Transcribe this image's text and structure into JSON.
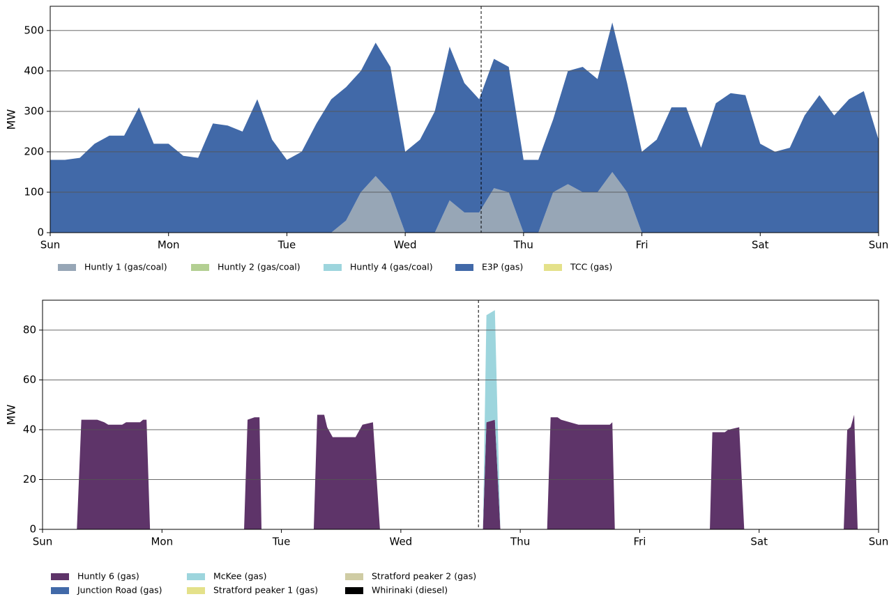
{
  "chart_data": [
    {
      "type": "area",
      "stacked": true,
      "y_label": "MW",
      "grid": true,
      "xlim": [
        0,
        168
      ],
      "ylim": [
        0,
        560
      ],
      "xticks": [
        {
          "value": 0,
          "label": "Sun"
        },
        {
          "value": 24,
          "label": "Mon"
        },
        {
          "value": 48,
          "label": "Tue"
        },
        {
          "value": 72,
          "label": "Wed"
        },
        {
          "value": 96,
          "label": "Thu"
        },
        {
          "value": 120,
          "label": "Fri"
        },
        {
          "value": 144,
          "label": "Sat"
        },
        {
          "value": 168,
          "label": "Sun"
        }
      ],
      "yticks": [
        0,
        100,
        200,
        300,
        400,
        500
      ],
      "marker_x": 87.4,
      "x": [
        0,
        3,
        6,
        9,
        12,
        15,
        18,
        21,
        24,
        27,
        30,
        33,
        36,
        39,
        42,
        45,
        48,
        51,
        54,
        57,
        60,
        63,
        66,
        69,
        72,
        75,
        78,
        81,
        84,
        87,
        90,
        93,
        96,
        99,
        102,
        105,
        108,
        111,
        114,
        117,
        120,
        123,
        126,
        129,
        132,
        135,
        138,
        141,
        144,
        147,
        150,
        153,
        156,
        159,
        162,
        165,
        168
      ],
      "series": [
        {
          "name": "Huntly 1 (gas/coal)",
          "color": "#97a6b6",
          "values": [
            0,
            0,
            0,
            0,
            0,
            0,
            0,
            0,
            0,
            0,
            0,
            0,
            0,
            0,
            0,
            0,
            0,
            0,
            0,
            0,
            30,
            100,
            140,
            100,
            0,
            0,
            0,
            80,
            50,
            50,
            110,
            100,
            0,
            0,
            100,
            120,
            100,
            100,
            150,
            100,
            0,
            0,
            0,
            0,
            0,
            0,
            0,
            0,
            0,
            0,
            0,
            0,
            0,
            0,
            0,
            0,
            0
          ]
        },
        {
          "name": "Huntly 2 (gas/coal)",
          "color": "#b3cf92",
          "values": [
            0,
            0,
            0,
            0,
            0,
            0,
            0,
            0,
            0,
            0,
            0,
            0,
            0,
            0,
            0,
            0,
            0,
            0,
            0,
            0,
            0,
            0,
            0,
            0,
            0,
            0,
            0,
            0,
            0,
            0,
            0,
            0,
            0,
            0,
            0,
            0,
            0,
            0,
            0,
            0,
            0,
            0,
            0,
            0,
            0,
            0,
            0,
            0,
            0,
            0,
            0,
            0,
            0,
            0,
            0,
            0,
            0
          ]
        },
        {
          "name": "Huntly 4 (gas/coal)",
          "color": "#9dd5dd",
          "values": [
            0,
            0,
            0,
            0,
            0,
            0,
            0,
            0,
            0,
            0,
            0,
            0,
            0,
            0,
            0,
            0,
            0,
            0,
            0,
            0,
            0,
            0,
            0,
            0,
            0,
            0,
            0,
            0,
            0,
            0,
            0,
            0,
            0,
            0,
            0,
            0,
            0,
            0,
            0,
            0,
            0,
            0,
            0,
            0,
            0,
            0,
            0,
            0,
            0,
            0,
            0,
            0,
            0,
            0,
            0,
            0,
            0
          ]
        },
        {
          "name": "E3P (gas)",
          "color": "#4169a8",
          "values": [
            180,
            180,
            185,
            220,
            240,
            240,
            310,
            220,
            220,
            190,
            185,
            270,
            265,
            250,
            330,
            230,
            180,
            200,
            270,
            330,
            330,
            300,
            330,
            310,
            200,
            230,
            300,
            380,
            320,
            280,
            320,
            310,
            180,
            180,
            180,
            280,
            310,
            280,
            370,
            270,
            200,
            230,
            310,
            310,
            210,
            320,
            345,
            340,
            220,
            200,
            210,
            290,
            340,
            290,
            330,
            350,
            230
          ]
        },
        {
          "name": "TCC (gas)",
          "color": "#e4e18a",
          "values": [
            0,
            0,
            0,
            0,
            0,
            0,
            0,
            0,
            0,
            0,
            0,
            0,
            0,
            0,
            0,
            0,
            0,
            0,
            0,
            0,
            0,
            0,
            0,
            0,
            0,
            0,
            0,
            0,
            0,
            0,
            0,
            0,
            0,
            0,
            0,
            0,
            0,
            0,
            0,
            0,
            0,
            0,
            0,
            0,
            0,
            0,
            0,
            0,
            0,
            0,
            0,
            0,
            0,
            0,
            0,
            0,
            0
          ]
        }
      ]
    },
    {
      "type": "area",
      "stacked": true,
      "y_label": "MW",
      "grid": true,
      "xlim": [
        0,
        168
      ],
      "ylim": [
        0,
        92
      ],
      "xticks": [
        {
          "value": 0,
          "label": "Sun"
        },
        {
          "value": 24,
          "label": "Mon"
        },
        {
          "value": 48,
          "label": "Tue"
        },
        {
          "value": 72,
          "label": "Wed"
        },
        {
          "value": 96,
          "label": "Thu"
        },
        {
          "value": 120,
          "label": "Fri"
        },
        {
          "value": 144,
          "label": "Sat"
        },
        {
          "value": 168,
          "label": "Sun"
        }
      ],
      "yticks": [
        0,
        20,
        40,
        60,
        80
      ],
      "marker_x": 87.6,
      "x": [
        0,
        6.9,
        7.8,
        11,
        12.4,
        13.2,
        16,
        16.8,
        19.6,
        20.2,
        20.9,
        21.6,
        40.5,
        41.2,
        42.6,
        43.6,
        44,
        54.5,
        55.2,
        56.6,
        57.2,
        58.3,
        62.9,
        64.3,
        66.4,
        67.8,
        88.5,
        89.2,
        90.9,
        92,
        101.4,
        102.1,
        103.5,
        104.2,
        107.7,
        114,
        114.5,
        115,
        134.1,
        134.6,
        137.1,
        137.8,
        140,
        141,
        161,
        161.7,
        162.4,
        163.1,
        163.8,
        168
      ],
      "series": [
        {
          "name": "Huntly 6 (gas)",
          "color": "#5e3469",
          "values": [
            0,
            0,
            44,
            44,
            43,
            42,
            42,
            43,
            43,
            44,
            44,
            0,
            0,
            44,
            45,
            45,
            0,
            0,
            46,
            46,
            41,
            37,
            37,
            42,
            43,
            0,
            0,
            43,
            44,
            0,
            0,
            45,
            45,
            44,
            42,
            42,
            43,
            0,
            0,
            39,
            39,
            40,
            41,
            0,
            0,
            40,
            41,
            46,
            0,
            0
          ]
        },
        {
          "name": "Junction Road (gas)",
          "color": "#4169a8",
          "values": [
            0,
            0,
            0,
            0,
            0,
            0,
            0,
            0,
            0,
            0,
            0,
            0,
            0,
            0,
            0,
            0,
            0,
            0,
            0,
            0,
            0,
            0,
            0,
            0,
            0,
            0,
            0,
            0,
            0,
            0,
            0,
            0,
            0,
            0,
            0,
            0,
            0,
            0,
            0,
            0,
            0,
            0,
            0,
            0,
            0,
            0,
            0,
            0,
            0,
            0
          ]
        },
        {
          "name": "McKee (gas)",
          "color": "#9dd5dd",
          "values": [
            0,
            0,
            0,
            0,
            0,
            0,
            0,
            0,
            0,
            0,
            0,
            0,
            0,
            0,
            0,
            0,
            0,
            0,
            0,
            0,
            0,
            0,
            0,
            0,
            0,
            0,
            0,
            43,
            44,
            0,
            0,
            0,
            0,
            0,
            0,
            0,
            0,
            0,
            0,
            0,
            0,
            0,
            0,
            0,
            0,
            0,
            0,
            0,
            0,
            0
          ]
        },
        {
          "name": "Stratford peaker 1 (gas)",
          "color": "#e4e18a",
          "values": [
            0,
            0,
            0,
            0,
            0,
            0,
            0,
            0,
            0,
            0,
            0,
            0,
            0,
            0,
            0,
            0,
            0,
            0,
            0,
            0,
            0,
            0,
            0,
            0,
            0,
            0,
            0,
            0,
            0,
            0,
            0,
            0,
            0,
            0,
            0,
            0,
            0,
            0,
            0,
            0,
            0,
            0,
            0,
            0,
            0,
            0,
            0,
            0,
            0,
            0
          ]
        },
        {
          "name": "Stratford peaker 2 (gas)",
          "color": "#cfcca4",
          "values": [
            0,
            0,
            0,
            0,
            0,
            0,
            0,
            0,
            0,
            0,
            0,
            0,
            0,
            0,
            0,
            0,
            0,
            0,
            0,
            0,
            0,
            0,
            0,
            0,
            0,
            0,
            0,
            0,
            0,
            0,
            0,
            0,
            0,
            0,
            0,
            0,
            0,
            0,
            0,
            0,
            0,
            0,
            0,
            0,
            0,
            0,
            0,
            0,
            0,
            0
          ]
        },
        {
          "name": "Whirinaki (diesel)",
          "color": "#000000",
          "values": [
            0,
            0,
            0,
            0,
            0,
            0,
            0,
            0,
            0,
            0,
            0,
            0,
            0,
            0,
            0,
            0,
            0,
            0,
            0,
            0,
            0,
            0,
            0,
            0,
            0,
            0,
            0,
            0,
            0,
            0,
            0,
            0,
            0,
            0,
            0,
            0,
            0,
            0,
            0,
            0,
            0,
            0,
            0,
            0,
            0,
            0,
            0,
            0,
            0,
            0
          ]
        }
      ]
    }
  ]
}
